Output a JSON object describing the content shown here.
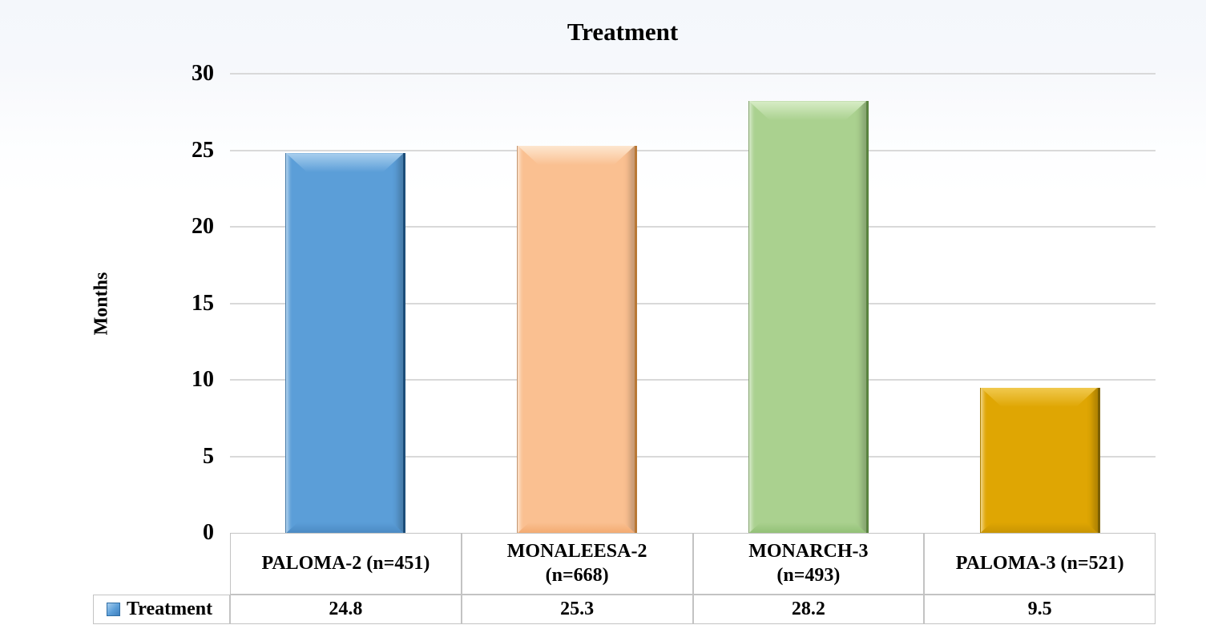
{
  "chart_data": {
    "type": "bar",
    "title": "Treatment",
    "xlabel": "",
    "ylabel": "Months",
    "ylim": [
      0,
      30
    ],
    "yticks": [
      0,
      5,
      10,
      15,
      20,
      25,
      30
    ],
    "grid": true,
    "legend_position": "bottom data table",
    "categories": [
      "PALOMA-2 (n=451)",
      "MONALEESA-2 (n=668)",
      "MONARCH-3 (n=493)",
      "PALOMA-3 (n=521)"
    ],
    "category_label_lines": [
      [
        "PALOMA-2 (n=451)"
      ],
      [
        "MONALEESA-2",
        "(n=668)"
      ],
      [
        "MONARCH-3",
        "(n=493)"
      ],
      [
        "PALOMA-3 (n=521)"
      ]
    ],
    "series": [
      {
        "name": "Treatment",
        "values": [
          24.8,
          25.3,
          28.2,
          9.5
        ]
      }
    ],
    "bar_styles": [
      {
        "color": "#5b9ed8",
        "light": "#a9cfee",
        "bottom": "#4c8bc4",
        "edge": "#1d4e79"
      },
      {
        "color": "#fac091",
        "light": "#fde7cf",
        "bottom": "#f3ab72",
        "edge": "#b97936"
      },
      {
        "color": "#aad18f",
        "light": "#d8edc7",
        "bottom": "#93c177",
        "edge": "#5a8440"
      },
      {
        "color": "#dfa603",
        "light": "#f1c94e",
        "bottom": "#c99503",
        "edge": "#7c6000"
      }
    ]
  },
  "data_table": {
    "legend_label": "Treatment",
    "legend_color": "#5b9ed8",
    "values": [
      "24.8",
      "25.3",
      "28.2",
      "9.5"
    ]
  }
}
